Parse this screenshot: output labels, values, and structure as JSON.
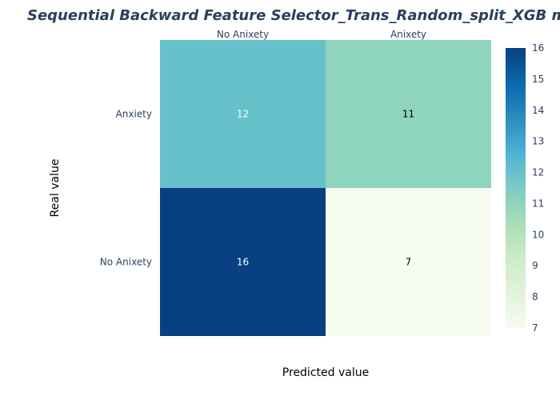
{
  "chart_data": {
    "type": "heatmap",
    "title": "Sequential Backward Feature Selector_Trans_Random_split_XGB matrix",
    "xlabel": "Predicted value",
    "ylabel": "Real value",
    "x_categories": [
      "No Anixety",
      "Anixety"
    ],
    "y_categories": [
      "Anxiety",
      "No Anixety"
    ],
    "values": [
      [
        12,
        11
      ],
      [
        16,
        7
      ]
    ],
    "colorscale": "GnBu",
    "colorbar": {
      "min": 7,
      "max": 16,
      "ticks": [
        16,
        15,
        14,
        13,
        12,
        11,
        10,
        9,
        8,
        7
      ]
    },
    "grid": false
  }
}
